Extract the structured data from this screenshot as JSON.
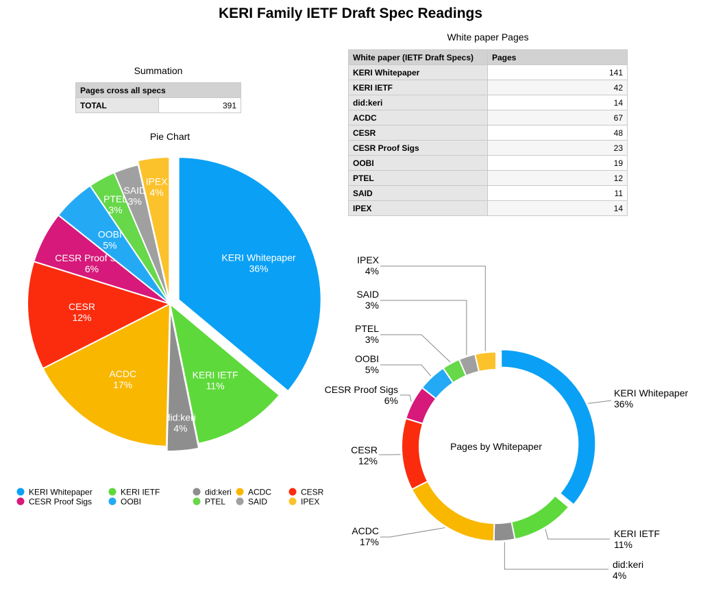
{
  "title": "KERI Family IETF Draft Spec Readings",
  "summation": {
    "caption": "Summation",
    "header": "Pages cross all specs",
    "total_label": "TOTAL",
    "total_value": "391"
  },
  "whitepaper_table": {
    "caption": "White paper Pages",
    "col_headers": [
      "White paper (IETF Draft Specs)",
      "Pages"
    ],
    "rows": [
      {
        "name": "KERI Whitepaper",
        "pages": "141"
      },
      {
        "name": "KERI IETF",
        "pages": "42"
      },
      {
        "name": "did:keri",
        "pages": "14"
      },
      {
        "name": "ACDC",
        "pages": "67"
      },
      {
        "name": "CESR",
        "pages": "48"
      },
      {
        "name": "CESR Proof Sigs",
        "pages": "23"
      },
      {
        "name": "OOBI",
        "pages": "19"
      },
      {
        "name": "PTEL",
        "pages": "12"
      },
      {
        "name": "SAID",
        "pages": "11"
      },
      {
        "name": "IPEX",
        "pages": "14"
      }
    ]
  },
  "chart_data": [
    {
      "type": "pie",
      "title": "Pie Chart",
      "categories": [
        "KERI Whitepaper",
        "KERI IETF",
        "did:keri",
        "ACDC",
        "CESR",
        "CESR Proof Sigs",
        "OOBI",
        "PTEL",
        "SAID",
        "IPEX"
      ],
      "values": [
        141,
        42,
        14,
        67,
        48,
        23,
        19,
        12,
        11,
        14
      ],
      "labels": [
        "36%",
        "11%",
        "4%",
        "17%",
        "12%",
        "6%",
        "5%",
        "3%",
        "3%",
        "4%"
      ],
      "colors": [
        "#0aa0f5",
        "#5ed93b",
        "#8e8e8e",
        "#f9b700",
        "#fb2c0e",
        "#d6197a",
        "#24aaf5",
        "#67d84a",
        "#a0a0a0",
        "#fcc22c"
      ],
      "exploded": [
        "KERI Whitepaper",
        "did:keri",
        "IPEX"
      ],
      "legend_position": "bottom"
    },
    {
      "type": "pie",
      "subtype": "donut",
      "title": "Pages by Whitepaper",
      "categories": [
        "KERI Whitepaper",
        "KERI IETF",
        "did:keri",
        "ACDC",
        "CESR",
        "CESR Proof Sigs",
        "OOBI",
        "PTEL",
        "SAID",
        "IPEX"
      ],
      "values": [
        141,
        42,
        14,
        67,
        48,
        23,
        19,
        12,
        11,
        14
      ],
      "labels": [
        "36%",
        "11%",
        "4%",
        "17%",
        "12%",
        "6%",
        "5%",
        "3%",
        "3%",
        "4%"
      ],
      "colors": [
        "#0aa0f5",
        "#5ed93b",
        "#8e8e8e",
        "#f9b700",
        "#fb2c0e",
        "#d6197a",
        "#24aaf5",
        "#67d84a",
        "#a0a0a0",
        "#fcc22c"
      ],
      "exploded": [
        "KERI Whitepaper"
      ]
    }
  ]
}
